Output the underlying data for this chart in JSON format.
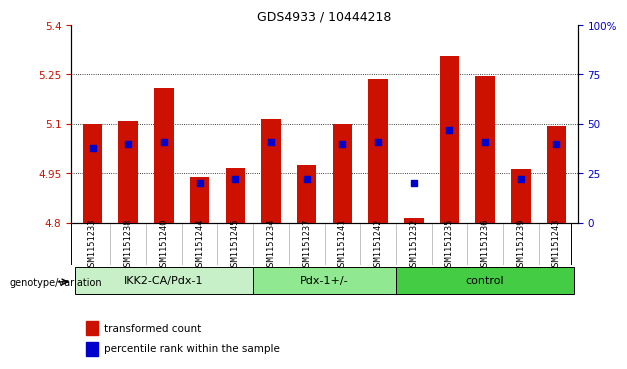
{
  "title": "GDS4933 / 10444218",
  "samples": [
    "GSM1151233",
    "GSM1151238",
    "GSM1151240",
    "GSM1151244",
    "GSM1151245",
    "GSM1151234",
    "GSM1151237",
    "GSM1151241",
    "GSM1151242",
    "GSM1151232",
    "GSM1151235",
    "GSM1151236",
    "GSM1151239",
    "GSM1151243"
  ],
  "bar_values": [
    5.1,
    5.11,
    5.21,
    4.94,
    4.965,
    5.115,
    4.975,
    5.1,
    5.235,
    4.815,
    5.305,
    5.245,
    4.963,
    5.095
  ],
  "dot_values": [
    38,
    40,
    41,
    20,
    22,
    41,
    22,
    40,
    41,
    20,
    47,
    41,
    22,
    40
  ],
  "groups": [
    {
      "label": "IKK2-CA/Pdx-1",
      "start": 0,
      "end": 5,
      "color": "#c8f0c8"
    },
    {
      "label": "Pdx-1+/-",
      "start": 5,
      "end": 9,
      "color": "#90e890"
    },
    {
      "label": "control",
      "start": 9,
      "end": 14,
      "color": "#44cc44"
    }
  ],
  "bar_color": "#cc1100",
  "dot_color": "#0000cc",
  "ylim_left": [
    4.8,
    5.4
  ],
  "ylim_right": [
    0,
    100
  ],
  "yticks_left": [
    4.8,
    4.95,
    5.1,
    5.25,
    5.4
  ],
  "yticks_right": [
    0,
    25,
    50,
    75,
    100
  ],
  "ytick_labels_right": [
    "0",
    "25",
    "50",
    "75",
    "100%"
  ],
  "grid_values": [
    4.95,
    5.1,
    5.25
  ],
  "bar_bottom": 4.8,
  "group_label": "genotype/variation",
  "legend_items": [
    "transformed count",
    "percentile rank within the sample"
  ],
  "legend_colors": [
    "#cc1100",
    "#0000cc"
  ],
  "background_plot": "#ffffff",
  "background_xtick": "#d0d0d0",
  "bar_width": 0.55
}
